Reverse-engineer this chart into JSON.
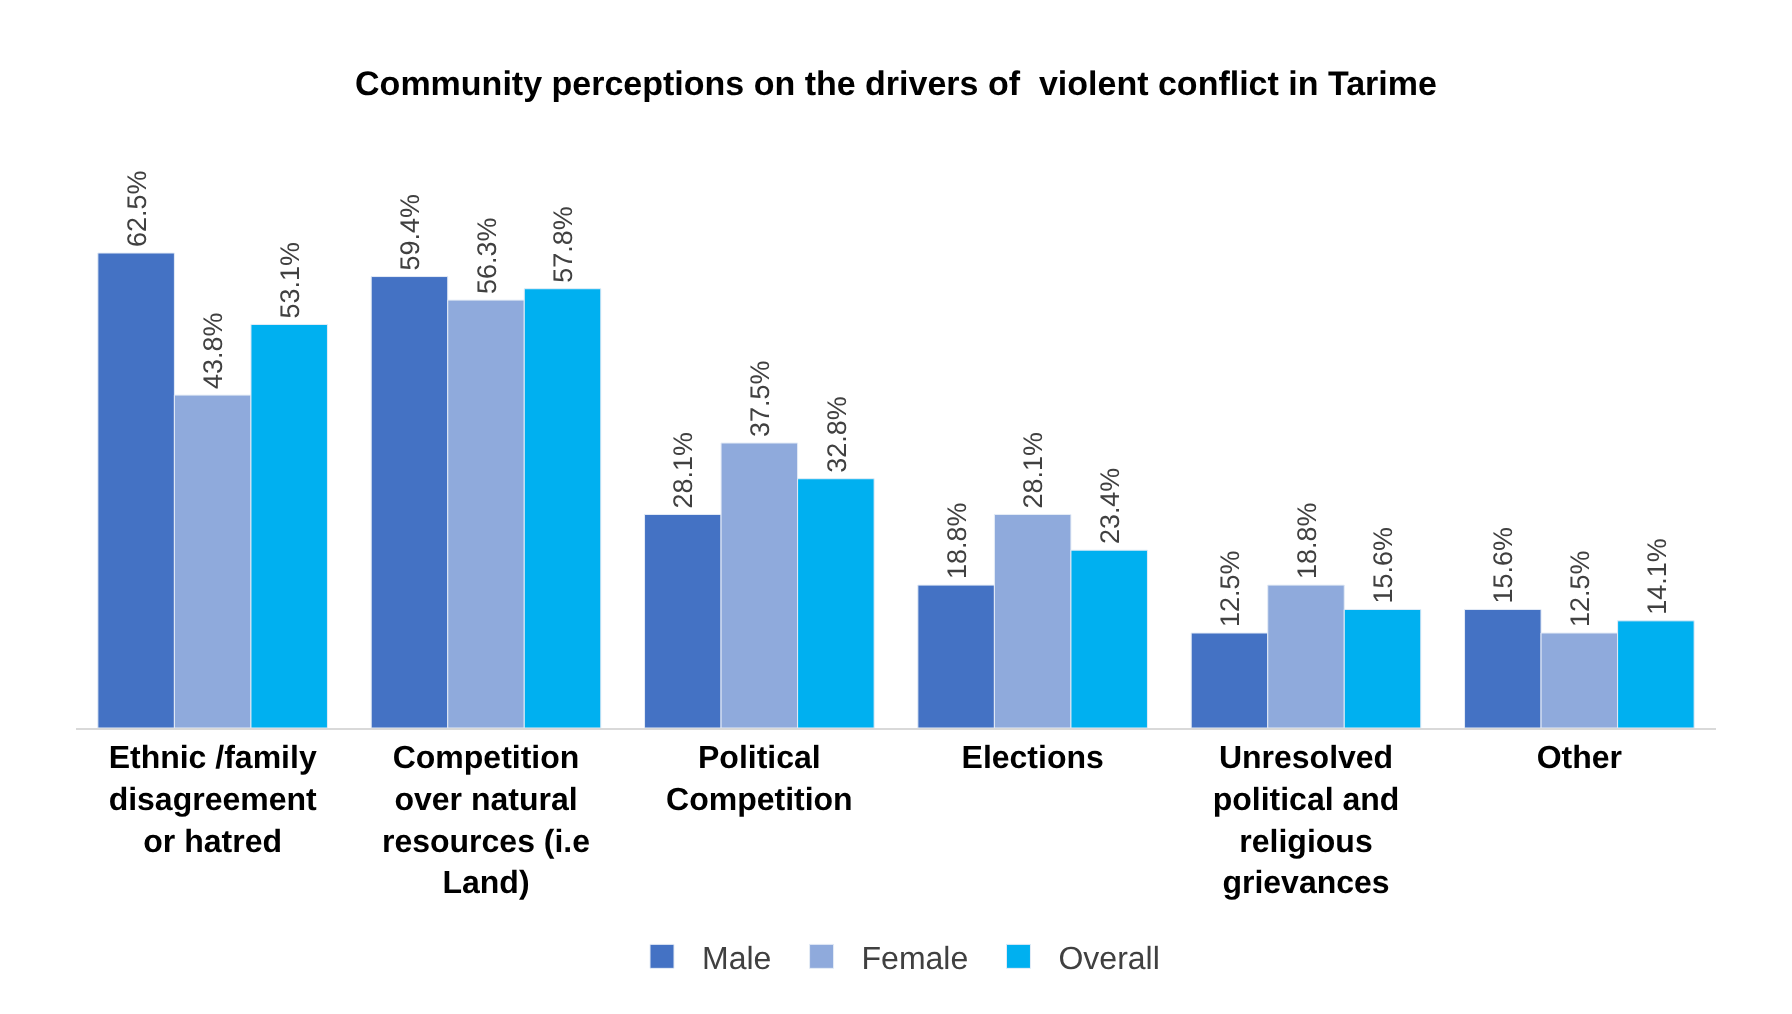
{
  "chart_data": {
    "type": "bar",
    "title": "Community perceptions on the drivers of  violent conflict in Tarime",
    "categories": [
      "Ethnic /family disagreement or hatred",
      "Competition over natural resources (i.e Land)",
      "Political Competition",
      "Elections",
      "Unresolved political and religious grievances",
      "Other"
    ],
    "series": [
      {
        "name": "Male",
        "color": "#4472c4",
        "values": [
          62.5,
          59.4,
          28.1,
          18.8,
          12.5,
          15.6
        ],
        "value_labels": [
          "62.5%",
          "59.4%",
          "28.1%",
          "18.8%",
          "12.5%",
          "15.6%"
        ]
      },
      {
        "name": "Female",
        "color": "#8faadc",
        "values": [
          43.8,
          56.3,
          37.5,
          28.1,
          18.8,
          12.5
        ],
        "value_labels": [
          "43.8%",
          "56.3%",
          "37.5%",
          "28.1%",
          "18.8%",
          "12.5%"
        ]
      },
      {
        "name": "Overall",
        "color": "#00b0f0",
        "values": [
          53.1,
          57.8,
          32.8,
          23.4,
          15.6,
          14.1
        ],
        "value_labels": [
          "53.1%",
          "57.8%",
          "32.8%",
          "23.4%",
          "15.6%",
          "14.1%"
        ]
      }
    ],
    "legend": "bottom",
    "tick_labels": "x"
  }
}
